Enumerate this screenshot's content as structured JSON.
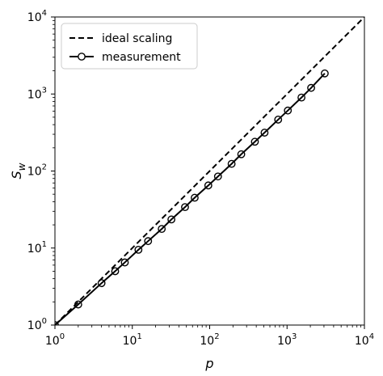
{
  "chart_data": {
    "type": "line",
    "x_scale": "log",
    "y_scale": "log",
    "xlabel": "p",
    "ylabel_base": "S",
    "ylabel_sub": "w",
    "xlim": [
      1,
      10000
    ],
    "ylim": [
      1,
      10000
    ],
    "grid": false,
    "legend_placement": "top-left",
    "x_ticks": [
      {
        "value": 1,
        "base": "10",
        "exp": "0"
      },
      {
        "value": 10,
        "base": "10",
        "exp": "1"
      },
      {
        "value": 100,
        "base": "10",
        "exp": "2"
      },
      {
        "value": 1000,
        "base": "10",
        "exp": "3"
      },
      {
        "value": 10000,
        "base": "10",
        "exp": "4"
      }
    ],
    "y_ticks": [
      {
        "value": 1,
        "base": "10",
        "exp": "0"
      },
      {
        "value": 10,
        "base": "10",
        "exp": "1"
      },
      {
        "value": 100,
        "base": "10",
        "exp": "2"
      },
      {
        "value": 1000,
        "base": "10",
        "exp": "3"
      },
      {
        "value": 10000,
        "base": "10",
        "exp": "4"
      }
    ],
    "series": [
      {
        "name": "ideal scaling",
        "style": "dashed",
        "color": "#000000",
        "x": [
          1,
          10000
        ],
        "y": [
          1,
          10000
        ]
      },
      {
        "name": "measurement",
        "style": "solid-circle-markers",
        "color": "#000000",
        "x": [
          1,
          2,
          4,
          6,
          8,
          12,
          16,
          24,
          32,
          48,
          64,
          96,
          128,
          192,
          256,
          384,
          512,
          768,
          1024,
          1536,
          2048,
          3072
        ],
        "y": [
          1,
          1.85,
          3.5,
          5.0,
          6.5,
          9.5,
          12.3,
          17.7,
          23.5,
          34.0,
          45.0,
          65.0,
          85.0,
          124.0,
          165.0,
          240.0,
          315.0,
          465.0,
          610.0,
          900.0,
          1200.0,
          1850.0
        ]
      }
    ]
  }
}
